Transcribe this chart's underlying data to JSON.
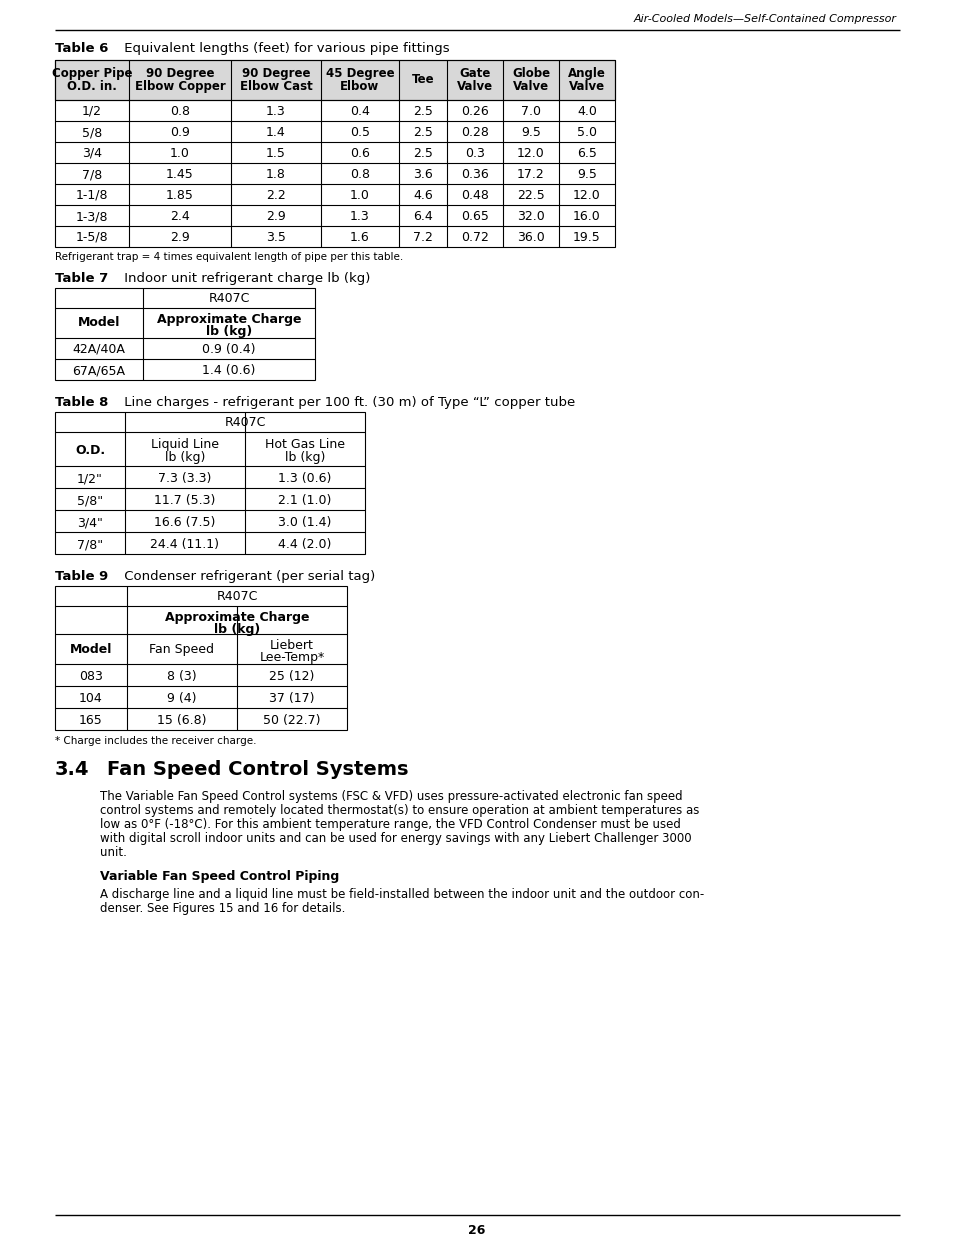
{
  "header_text": "Air-Cooled Models—Self-Contained Compressor",
  "page_number": "26",
  "table6_title_bold": "Table 6",
  "table6_title_rest": "     Equivalent lengths (feet) for various pipe fittings",
  "table6_headers": [
    "Copper Pipe\nO.D. in.",
    "90 Degree\nElbow Copper",
    "90 Degree\nElbow Cast",
    "45 Degree\nElbow",
    "Tee",
    "Gate\nValve",
    "Globe\nValve",
    "Angle\nValve"
  ],
  "table6_data": [
    [
      "1/2",
      "0.8",
      "1.3",
      "0.4",
      "2.5",
      "0.26",
      "7.0",
      "4.0"
    ],
    [
      "5/8",
      "0.9",
      "1.4",
      "0.5",
      "2.5",
      "0.28",
      "9.5",
      "5.0"
    ],
    [
      "3/4",
      "1.0",
      "1.5",
      "0.6",
      "2.5",
      "0.3",
      "12.0",
      "6.5"
    ],
    [
      "7/8",
      "1.45",
      "1.8",
      "0.8",
      "3.6",
      "0.36",
      "17.2",
      "9.5"
    ],
    [
      "1-1/8",
      "1.85",
      "2.2",
      "1.0",
      "4.6",
      "0.48",
      "22.5",
      "12.0"
    ],
    [
      "1-3/8",
      "2.4",
      "2.9",
      "1.3",
      "6.4",
      "0.65",
      "32.0",
      "16.0"
    ],
    [
      "1-5/8",
      "2.9",
      "3.5",
      "1.6",
      "7.2",
      "0.72",
      "36.0",
      "19.5"
    ]
  ],
  "table6_note": "Refrigerant trap = 4 times equivalent length of pipe per this table.",
  "table7_title_bold": "Table 7",
  "table7_title_rest": "     Indoor unit refrigerant charge lb (kg)",
  "table7_col1": "Model",
  "table7_subheader": "R407C",
  "table7_col2a": "Approximate Charge",
  "table7_col2b": "lb (kg)",
  "table7_data": [
    [
      "42A/40A",
      "0.9 (0.4)"
    ],
    [
      "67A/65A",
      "1.4 (0.6)"
    ]
  ],
  "table8_title_bold": "Table 8",
  "table8_title_rest": "     Line charges - refrigerant per 100 ft. (30 m) of Type “L” copper tube",
  "table8_col1": "O.D.",
  "table8_subheader": "R407C",
  "table8_col2a": "Liquid Line",
  "table8_col2b": "lb (kg)",
  "table8_col3a": "Hot Gas Line",
  "table8_col3b": "lb (kg)",
  "table8_data": [
    [
      "1/2\"",
      "7.3 (3.3)",
      "1.3 (0.6)"
    ],
    [
      "5/8\"",
      "11.7 (5.3)",
      "2.1 (1.0)"
    ],
    [
      "3/4\"",
      "16.6 (7.5)",
      "3.0 (1.4)"
    ],
    [
      "7/8\"",
      "24.4 (11.1)",
      "4.4 (2.0)"
    ]
  ],
  "table9_title_bold": "Table 9",
  "table9_title_rest": "     Condenser refrigerant (per serial tag)",
  "table9_col1": "Model",
  "table9_subheader": "R407C",
  "table9_sub2a": "Approximate Charge",
  "table9_sub2b": "lb (kg)",
  "table9_col2": "Fan Speed",
  "table9_col3a": "Liebert",
  "table9_col3b": "Lee-Temp*",
  "table9_data": [
    [
      "083",
      "8 (3)",
      "25 (12)"
    ],
    [
      "104",
      "9 (4)",
      "37 (17)"
    ],
    [
      "165",
      "15 (6.8)",
      "50 (22.7)"
    ]
  ],
  "table9_note": "* Charge includes the receiver charge.",
  "section_number": "3.4",
  "section_title": "Fan Speed Control Systems",
  "section_para_lines": [
    "The Variable Fan Speed Control systems (FSC & VFD) uses pressure-activated electronic fan speed",
    "control systems and remotely located thermostat(s) to ensure operation at ambient temperatures as",
    "low as 0°F (-18°C). For this ambient temperature range, the VFD Control Condenser must be used",
    "with digital scroll indoor units and can be used for energy savings with any Liebert Challenger 3000",
    "unit."
  ],
  "subsection_title": "Variable Fan Speed Control Piping",
  "subsection_para_lines": [
    "A discharge line and a liquid line must be field-installed between the indoor unit and the outdoor con-",
    "denser. See Figures 15 and 16 for details."
  ]
}
